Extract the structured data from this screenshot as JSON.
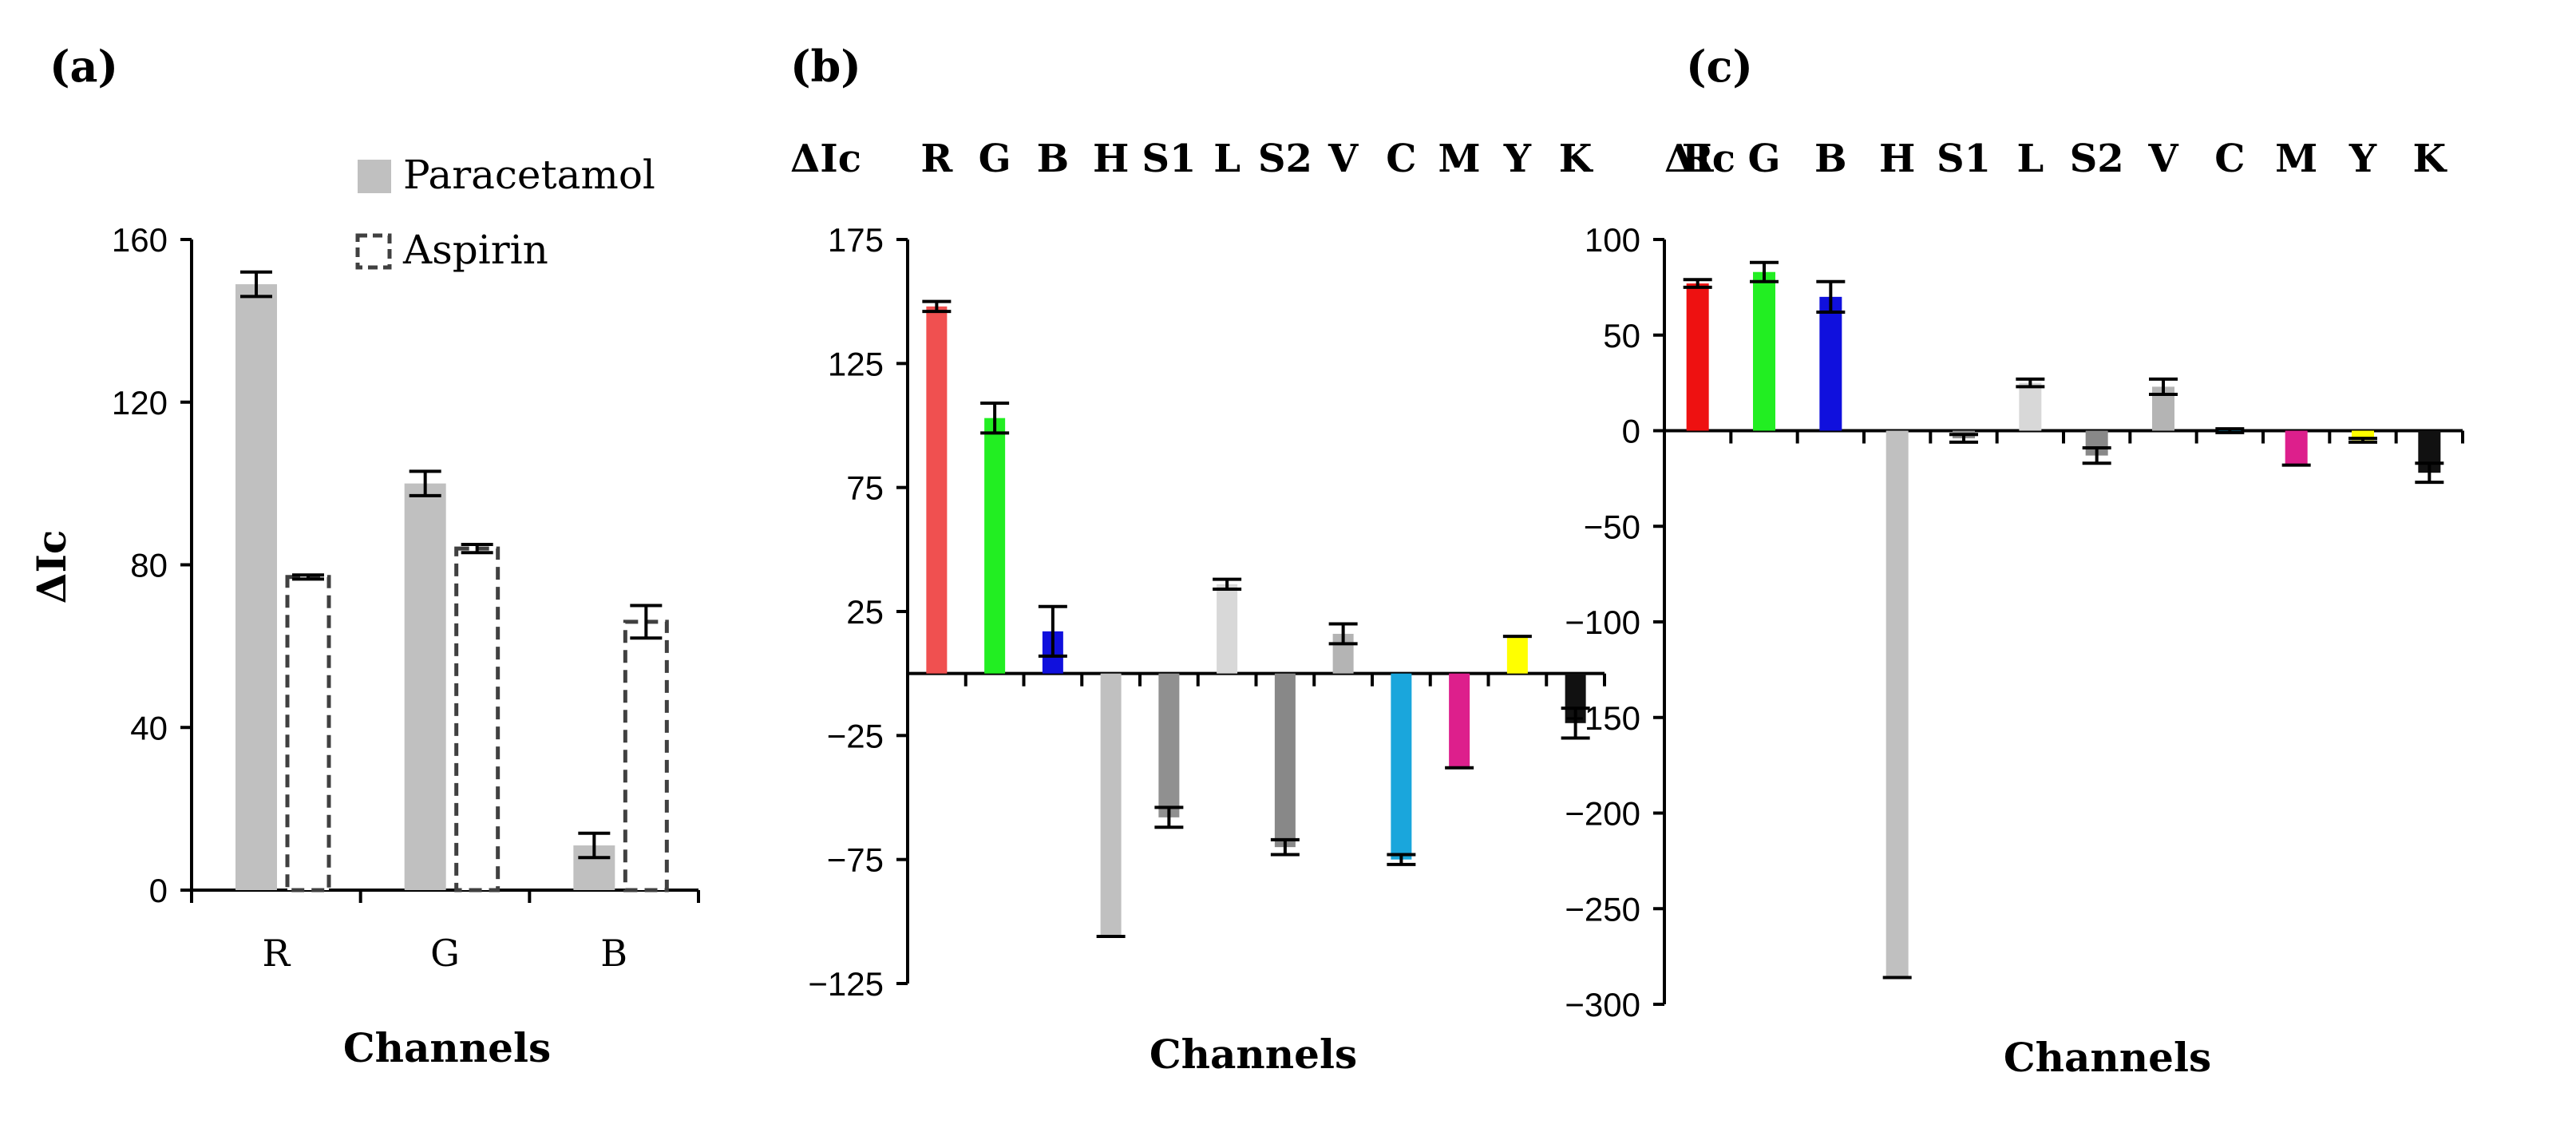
{
  "chart_data": [
    {
      "panel": "(a)",
      "type": "bar",
      "ylabel": "ΔIc",
      "xlabel": "Channels",
      "ylim": [
        0,
        160
      ],
      "yticks": [
        "0",
        "40",
        "80",
        "120",
        "160"
      ],
      "categories": [
        "R",
        "G",
        "B"
      ],
      "legend_placement": "top-right",
      "series": [
        {
          "name": "Paracetamol",
          "values": [
            149,
            100,
            11
          ],
          "errors": [
            3,
            3,
            3
          ],
          "color": "#c0c0c0"
        },
        {
          "name": "Aspirin",
          "values": [
            77,
            84,
            66
          ],
          "errors": [
            0.5,
            1,
            4
          ],
          "color": "#ffffff",
          "outline": "#404040"
        }
      ]
    },
    {
      "panel": "(b)",
      "type": "bar",
      "ylabel": "ΔIc",
      "xlabel": "Channels",
      "ylim": [
        -125,
        175
      ],
      "yticks": [
        "-125",
        "-75",
        "-25",
        "25",
        "75",
        "125",
        "175"
      ],
      "categories": [
        "R",
        "G",
        "B",
        "H",
        "S1",
        "L",
        "S2",
        "V",
        "C",
        "M",
        "Y",
        "K"
      ],
      "values": [
        148,
        103,
        17,
        -106,
        -58,
        36,
        -70,
        16,
        -75,
        -38,
        15,
        -20
      ],
      "errors": [
        2,
        6,
        10,
        0,
        4,
        2,
        3,
        4,
        2,
        0,
        0,
        6
      ],
      "colors": [
        "#f05050",
        "#22ee22",
        "#1010dd",
        "#c0c0c0",
        "#909090",
        "#d8d8d8",
        "#888888",
        "#b4b4b4",
        "#1aa6dc",
        "#dd1f8c",
        "#ffff00",
        "#111111"
      ]
    },
    {
      "panel": "(c)",
      "type": "bar",
      "ylabel": "ΔIc",
      "xlabel": "Channels",
      "ylim": [
        -300,
        100
      ],
      "yticks": [
        "-300",
        "-250",
        "-200",
        "-150",
        "-100",
        "-50",
        "0",
        "50",
        "100"
      ],
      "categories": [
        "R",
        "G",
        "B",
        "H",
        "S1",
        "L",
        "S2",
        "V",
        "C",
        "M",
        "Y",
        "K"
      ],
      "values": [
        77,
        83,
        70,
        -286,
        -4,
        25,
        -13,
        23,
        0,
        -18,
        -5,
        -22
      ],
      "errors": [
        2,
        5,
        8,
        0,
        2,
        2,
        4,
        4,
        1,
        0,
        1,
        5
      ],
      "colors": [
        "#ee1111",
        "#22ee22",
        "#1010dd",
        "#c0c0c0",
        "#909090",
        "#d8d8d8",
        "#888888",
        "#b4b4b4",
        "#1aa6dc",
        "#dd1f8c",
        "#ffff00",
        "#111111"
      ]
    }
  ]
}
